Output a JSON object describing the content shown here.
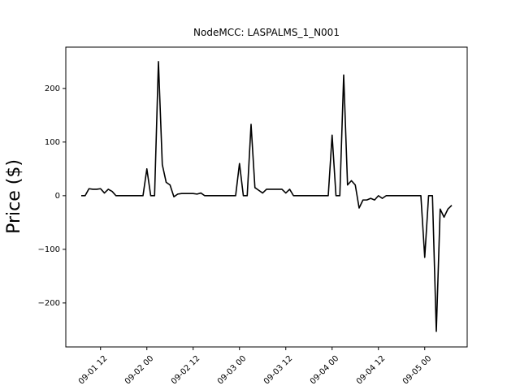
{
  "chart_data": {
    "type": "line",
    "title": "NodeMCC: LASPALMS_1_N001",
    "y_label": "Price ($)",
    "x": [
      "09-01 07",
      "09-01 08",
      "09-01 09",
      "09-01 10",
      "09-01 11",
      "09-01 12",
      "09-01 13",
      "09-01 14",
      "09-01 15",
      "09-01 16",
      "09-01 17",
      "09-01 18",
      "09-01 19",
      "09-01 20",
      "09-01 21",
      "09-01 22",
      "09-01 23",
      "09-02 00",
      "09-02 01",
      "09-02 02",
      "09-02 03",
      "09-02 04",
      "09-02 05",
      "09-02 06",
      "09-02 07",
      "09-02 08",
      "09-02 09",
      "09-02 10",
      "09-02 11",
      "09-02 12",
      "09-02 13",
      "09-02 14",
      "09-02 15",
      "09-02 16",
      "09-02 17",
      "09-02 18",
      "09-02 19",
      "09-02 20",
      "09-02 21",
      "09-02 22",
      "09-02 23",
      "09-03 00",
      "09-03 01",
      "09-03 02",
      "09-03 03",
      "09-03 04",
      "09-03 05",
      "09-03 06",
      "09-03 07",
      "09-03 08",
      "09-03 09",
      "09-03 10",
      "09-03 11",
      "09-03 12",
      "09-03 13",
      "09-03 14",
      "09-03 15",
      "09-03 16",
      "09-03 17",
      "09-03 18",
      "09-03 19",
      "09-03 20",
      "09-03 21",
      "09-03 22",
      "09-03 23",
      "09-04 00",
      "09-04 01",
      "09-04 02",
      "09-04 03",
      "09-04 04",
      "09-04 05",
      "09-04 06",
      "09-04 07",
      "09-04 08",
      "09-04 09",
      "09-04 10",
      "09-04 11",
      "09-04 12",
      "09-04 13",
      "09-04 14",
      "09-04 15",
      "09-04 16",
      "09-04 17",
      "09-04 18",
      "09-04 19",
      "09-04 20",
      "09-04 21",
      "09-04 22",
      "09-04 23",
      "09-05 00",
      "09-05 01",
      "09-05 02",
      "09-05 03",
      "09-05 04",
      "09-05 05",
      "09-05 06",
      "09-05 07"
    ],
    "series": [
      {
        "color": "#000000",
        "values": [
          0,
          0,
          13,
          12,
          12,
          13,
          5,
          12,
          8,
          0,
          0,
          0,
          0,
          0,
          0,
          0,
          0,
          50,
          0,
          0,
          250,
          58,
          25,
          20,
          -2,
          3,
          4,
          4,
          4,
          4,
          3,
          5,
          0,
          0,
          0,
          0,
          0,
          0,
          0,
          0,
          0,
          60,
          0,
          0,
          133,
          15,
          10,
          5,
          12,
          12,
          12,
          12,
          12,
          5,
          12,
          0,
          0,
          0,
          0,
          0,
          0,
          0,
          0,
          0,
          0,
          113,
          0,
          0,
          225,
          20,
          28,
          20,
          -23,
          -8,
          -8,
          -5,
          -8,
          0,
          -5,
          0,
          0,
          0,
          0,
          0,
          0,
          0,
          0,
          0,
          0,
          -115,
          0,
          0,
          -253,
          -25,
          -40,
          -25,
          -18
        ]
      }
    ],
    "xlim": [
      "09-01 03",
      "09-05 11"
    ],
    "xticks": [
      "09-01 12",
      "09-02 00",
      "09-02 12",
      "09-03 00",
      "09-03 12",
      "09-04 00",
      "09-04 12",
      "09-05 00"
    ],
    "ylim": [
      -282,
      277
    ],
    "yticks": [
      {
        "value": -200,
        "label": "−200"
      },
      {
        "value": -100,
        "label": "−100"
      },
      0,
      100,
      200
    ],
    "grid": false
  }
}
